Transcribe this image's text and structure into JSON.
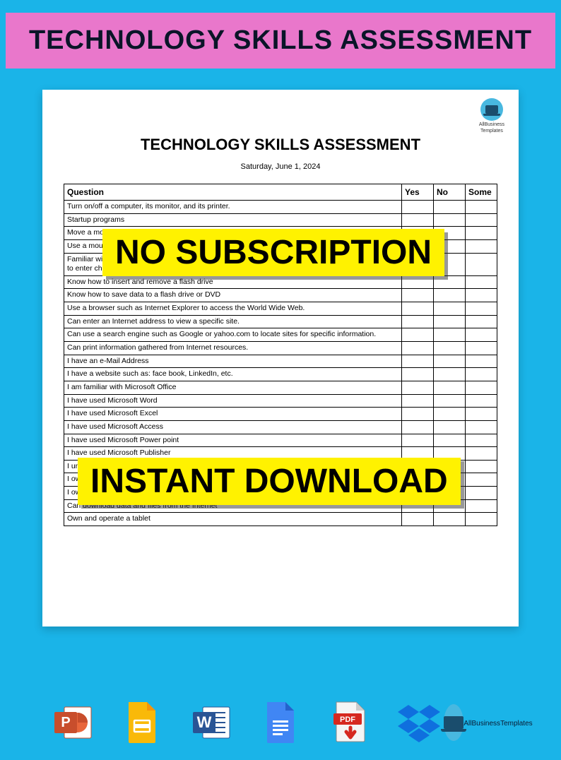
{
  "banner": {
    "title": "TECHNOLOGY SKILLS ASSESSMENT"
  },
  "overlays": {
    "text1": "NO SUBSCRIPTION",
    "text2": "INSTANT DOWNLOAD"
  },
  "document": {
    "title": "TECHNOLOGY SKILLS ASSESSMENT",
    "date": "Saturday, June 1, 2024",
    "logo_text1": "AllBusiness",
    "logo_text2": "Templates",
    "table": {
      "headers": {
        "question": "Question",
        "yes": "Yes",
        "no": "No",
        "some": "Some"
      },
      "rows": [
        "Turn on/off a computer, its monitor, and its printer.",
        "Startup programs",
        "Move a mouse, click, double-click, right-click to see options",
        "Use a mouse",
        "Familiar with the layout of a standard keyboard and can use keys-even if I can only hunt and peck--to enter characters (text), to erase (delete) text, to move the cursor around the screen.",
        "Know how to insert and remove a flash drive",
        "Know how to save data to a flash drive or DVD",
        "Use a browser such as Internet Explorer to access the World Wide Web.",
        "Can enter an Internet address to view a specific site.",
        "Can use a search engine such as Google or yahoo.com to locate sites for specific information.",
        "Can print information gathered from Internet resources.",
        "I have an e-Mail Address",
        "I have a website such as: face book, LinkedIn, etc.",
        "I am familiar with Microsoft Office",
        "I have used Microsoft Word",
        "I have used Microsoft Excel",
        "I have used Microsoft Access",
        "I have used Microsoft Power point",
        "I have used Microsoft Publisher",
        "I understand what Microsoft Windows is",
        "I own a computer",
        "I own a printer",
        "Can download data and files from the Internet",
        "Own and operate a tablet"
      ]
    }
  },
  "icons": {
    "powerpoint": "powerpoint-icon",
    "slides": "google-slides-icon",
    "word": "word-icon",
    "docs": "google-docs-icon",
    "pdf": "pdf-icon",
    "dropbox": "dropbox-icon",
    "allbusiness": "allbusiness-icon",
    "ab_text1": "AllBusiness",
    "ab_text2": "Templates"
  },
  "colors": {
    "background": "#1ab4e8",
    "banner_bg": "#e977cb",
    "overlay_bg": "#fff200",
    "doc_bg": "#ffffff"
  }
}
